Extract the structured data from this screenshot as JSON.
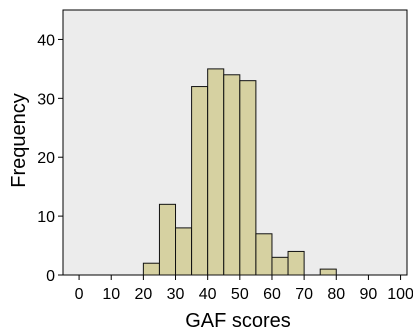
{
  "chart_data": {
    "type": "bar",
    "histogram": true,
    "title": "",
    "xlabel": "GAF scores",
    "ylabel": "Frequency",
    "xlim": [
      -5,
      102
    ],
    "ylim": [
      0,
      45
    ],
    "xticks": [
      0,
      10,
      20,
      30,
      40,
      50,
      60,
      70,
      80,
      90,
      100
    ],
    "yticks": [
      0,
      10,
      20,
      30,
      40
    ],
    "bin_width": 5,
    "bin_starts": [
      20,
      25,
      30,
      35,
      40,
      45,
      50,
      55,
      60,
      65,
      70,
      75
    ],
    "values": [
      2,
      12,
      8,
      32,
      35,
      34,
      33,
      7,
      3,
      4,
      0,
      1
    ],
    "grid": false,
    "plot_background": "#ececec",
    "bar_color": "#d6d1a1",
    "bar_edge_color": "#111111"
  }
}
